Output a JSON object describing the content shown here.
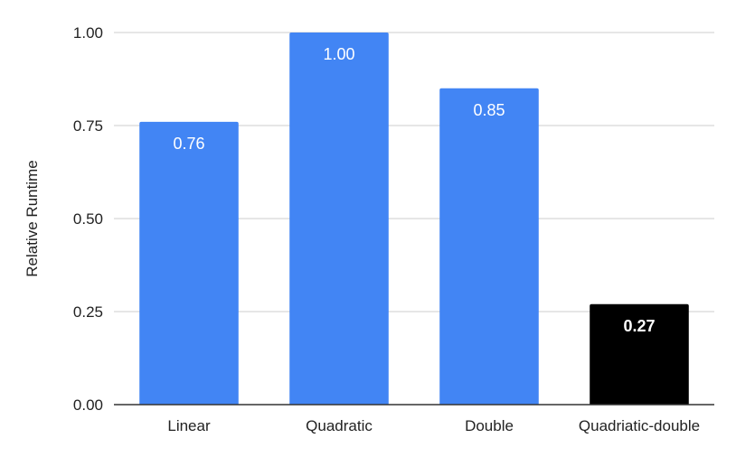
{
  "chart_data": {
    "type": "bar",
    "title": "",
    "xlabel": "",
    "ylabel": "Relative Runtime",
    "categories": [
      "Linear",
      "Quadratic",
      "Double",
      "Quadriatic-double"
    ],
    "values": [
      0.76,
      1.0,
      0.85,
      0.27
    ],
    "data_labels": [
      "0.76",
      "1.00",
      "0.85",
      "0.27"
    ],
    "ylim": [
      0,
      1
    ],
    "yticks": [
      0,
      0.25,
      0.5,
      0.75,
      1.0
    ],
    "ytick_labels": [
      "0.00",
      "0.25",
      "0.50",
      "0.75",
      "1.00"
    ],
    "grid": true,
    "legend": "none",
    "colors": {
      "bar_default": "#4285f4",
      "bar_highlight": "#000000",
      "gridline": "#cccccc",
      "axis": "#333333",
      "label_default": "#ffffff",
      "label_highlight": "#ffffff"
    },
    "highlight_index": 3
  }
}
